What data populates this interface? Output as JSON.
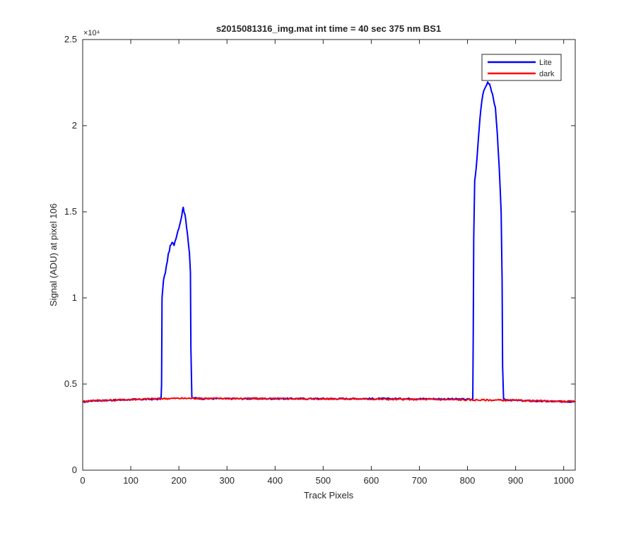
{
  "chart_data": {
    "type": "line",
    "title": "s2015081316_img.mat int time = 40 sec  375 nm BS1",
    "xlabel": "Track Pixels",
    "ylabel": "Signal (ADU) at pixel 106",
    "y_exponent_label": "×10⁴",
    "xlim": [
      0,
      1024
    ],
    "ylim": [
      0,
      25000
    ],
    "xticks": [
      0,
      100,
      200,
      300,
      400,
      500,
      600,
      700,
      800,
      900,
      1000
    ],
    "xtick_labels": [
      "0",
      "100",
      "200",
      "300",
      "400",
      "500",
      "600",
      "700",
      "800",
      "900",
      "1000"
    ],
    "yticks": [
      0,
      5000,
      10000,
      15000,
      20000,
      25000
    ],
    "ytick_labels": [
      "0",
      "0.5",
      "1",
      "1.5",
      "2",
      "2.5"
    ],
    "legend_position": "top-right",
    "grid": false,
    "series": [
      {
        "name": "Lite",
        "color": "#0000ff",
        "points": [
          [
            0,
            3950
          ],
          [
            20,
            4030
          ],
          [
            50,
            4050
          ],
          [
            100,
            4100
          ],
          [
            150,
            4120
          ],
          [
            163,
            4130
          ],
          [
            164,
            5000
          ],
          [
            165,
            10000
          ],
          [
            168,
            11000
          ],
          [
            172,
            11500
          ],
          [
            178,
            12500
          ],
          [
            182,
            13000
          ],
          [
            186,
            13200
          ],
          [
            190,
            13100
          ],
          [
            194,
            13500
          ],
          [
            198,
            13900
          ],
          [
            202,
            14300
          ],
          [
            206,
            14800
          ],
          [
            209,
            15300
          ],
          [
            211,
            15000
          ],
          [
            214,
            14600
          ],
          [
            218,
            13700
          ],
          [
            222,
            12600
          ],
          [
            224,
            11500
          ],
          [
            225,
            7000
          ],
          [
            227,
            4200
          ],
          [
            250,
            4150
          ],
          [
            300,
            4150
          ],
          [
            400,
            4150
          ],
          [
            500,
            4150
          ],
          [
            600,
            4150
          ],
          [
            700,
            4150
          ],
          [
            800,
            4120
          ],
          [
            811,
            4100
          ],
          [
            812,
            8000
          ],
          [
            813,
            13500
          ],
          [
            815,
            16800
          ],
          [
            818,
            17500
          ],
          [
            822,
            19000
          ],
          [
            826,
            20500
          ],
          [
            830,
            21500
          ],
          [
            834,
            22000
          ],
          [
            838,
            22300
          ],
          [
            842,
            22500
          ],
          [
            846,
            22400
          ],
          [
            850,
            22000
          ],
          [
            854,
            21600
          ],
          [
            858,
            21000
          ],
          [
            862,
            19500
          ],
          [
            866,
            17500
          ],
          [
            870,
            15000
          ],
          [
            872,
            11000
          ],
          [
            873,
            6000
          ],
          [
            875,
            4100
          ],
          [
            900,
            4050
          ],
          [
            950,
            4000
          ],
          [
            1000,
            3980
          ],
          [
            1024,
            3990
          ]
        ]
      },
      {
        "name": "dark",
        "color": "#ff0000",
        "points": [
          [
            0,
            3980
          ],
          [
            20,
            4050
          ],
          [
            50,
            4060
          ],
          [
            100,
            4100
          ],
          [
            150,
            4150
          ],
          [
            200,
            4170
          ],
          [
            250,
            4170
          ],
          [
            300,
            4160
          ],
          [
            350,
            4160
          ],
          [
            400,
            4150
          ],
          [
            450,
            4150
          ],
          [
            500,
            4140
          ],
          [
            550,
            4150
          ],
          [
            600,
            4130
          ],
          [
            650,
            4110
          ],
          [
            700,
            4110
          ],
          [
            750,
            4100
          ],
          [
            800,
            4080
          ],
          [
            850,
            4070
          ],
          [
            900,
            4050
          ],
          [
            950,
            4020
          ],
          [
            1000,
            3990
          ],
          [
            1024,
            3990
          ]
        ]
      }
    ]
  }
}
